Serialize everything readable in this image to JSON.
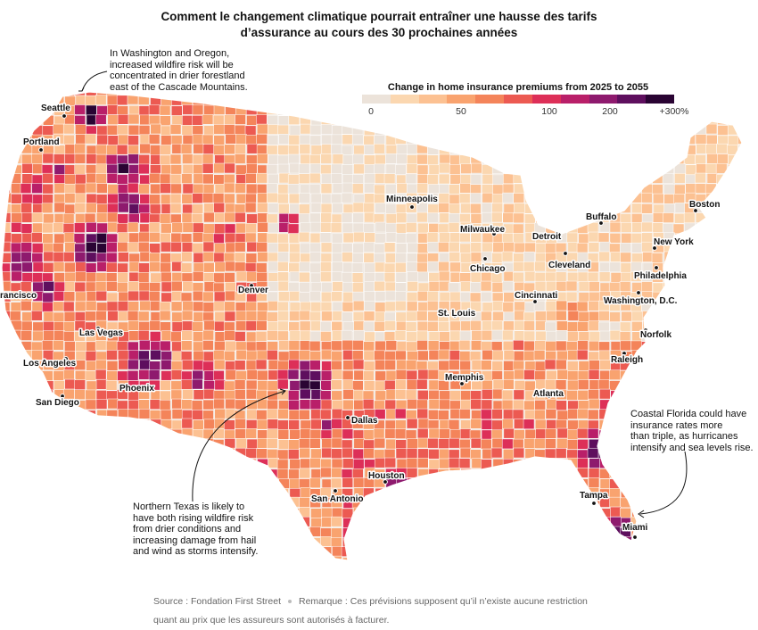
{
  "title": {
    "line1": "Comment le changement climatique pourrait entraîner une hausse des tarifs",
    "line2": "d’assurance au cours des 30 prochaines années"
  },
  "legend": {
    "title": "Change in home insurance premiums from 2025 to 2055",
    "ticks": [
      "0",
      "50",
      "100",
      "200",
      "+300%"
    ],
    "colors": [
      "#ece3da",
      "#fbd7b0",
      "#fcc192",
      "#f9a36f",
      "#f4845a",
      "#ec5a52",
      "#dd2f58",
      "#b91f69",
      "#8e1a6e",
      "#5e0f5e",
      "#2a0433"
    ]
  },
  "cities": [
    {
      "name": "Seattle",
      "kind": "city-seattle"
    },
    {
      "name": "Portland",
      "kind": "city-portland"
    },
    {
      "name": "rancisco",
      "kind": "city-san-francisco"
    },
    {
      "name": "Las Vegas",
      "kind": "city-las-vegas"
    },
    {
      "name": "Los Angeles",
      "kind": "city-los-angeles"
    },
    {
      "name": "San Diego",
      "kind": "city-san-diego"
    },
    {
      "name": "Phoenix",
      "kind": "city-phoenix"
    },
    {
      "name": "Denver",
      "kind": "city-denver"
    },
    {
      "name": "Minneapolis",
      "kind": "city-minneapolis"
    },
    {
      "name": "Milwaukee",
      "kind": "city-milwaukee"
    },
    {
      "name": "Chicago",
      "kind": "city-chicago"
    },
    {
      "name": "Detroit",
      "kind": "city-detroit"
    },
    {
      "name": "Cleveland",
      "kind": "city-cleveland"
    },
    {
      "name": "Buffalo",
      "kind": "city-buffalo"
    },
    {
      "name": "Boston",
      "kind": "city-boston"
    },
    {
      "name": "New York",
      "kind": "city-new-york"
    },
    {
      "name": "Philadelphia",
      "kind": "city-philadelphia"
    },
    {
      "name": "Washington, D.C.",
      "kind": "city-washington"
    },
    {
      "name": "Cincinnati",
      "kind": "city-cincinnati"
    },
    {
      "name": "St. Louis",
      "kind": "city-st-louis"
    },
    {
      "name": "Norfolk",
      "kind": "city-norfolk"
    },
    {
      "name": "Raleigh",
      "kind": "city-raleigh"
    },
    {
      "name": "Memphis",
      "kind": "city-memphis"
    },
    {
      "name": "Atlanta",
      "kind": "city-atlanta"
    },
    {
      "name": "Dallas",
      "kind": "city-dallas"
    },
    {
      "name": "Houston",
      "kind": "city-houston"
    },
    {
      "name": "San Antonio",
      "kind": "city-san-antonio"
    },
    {
      "name": "Tampa",
      "kind": "city-tampa"
    },
    {
      "name": "Miami",
      "kind": "city-miami"
    }
  ],
  "annotations": {
    "northwest": [
      "In Washington and Oregon,",
      "increased wildfire risk will be",
      "concentrated in drier forestland",
      "east of the Cascade Mountains."
    ],
    "texas": [
      "Northern Texas is likely to",
      "have both rising wildfire risk",
      "from drier conditions and",
      "increasing damage from hail",
      "and wind as storms intensify."
    ],
    "florida": [
      "Coastal Florida could have",
      "insurance rates more",
      "than triple, as hurricanes",
      "intensify and sea levels rise."
    ]
  },
  "footer": {
    "source": "Source : Fondation First Street",
    "note_line1": "Remarque : Ces prévisions supposent qu’il n’existe aucune restriction",
    "note_line2": "quant au prix que les assureurs sont autorisés à facturer."
  }
}
